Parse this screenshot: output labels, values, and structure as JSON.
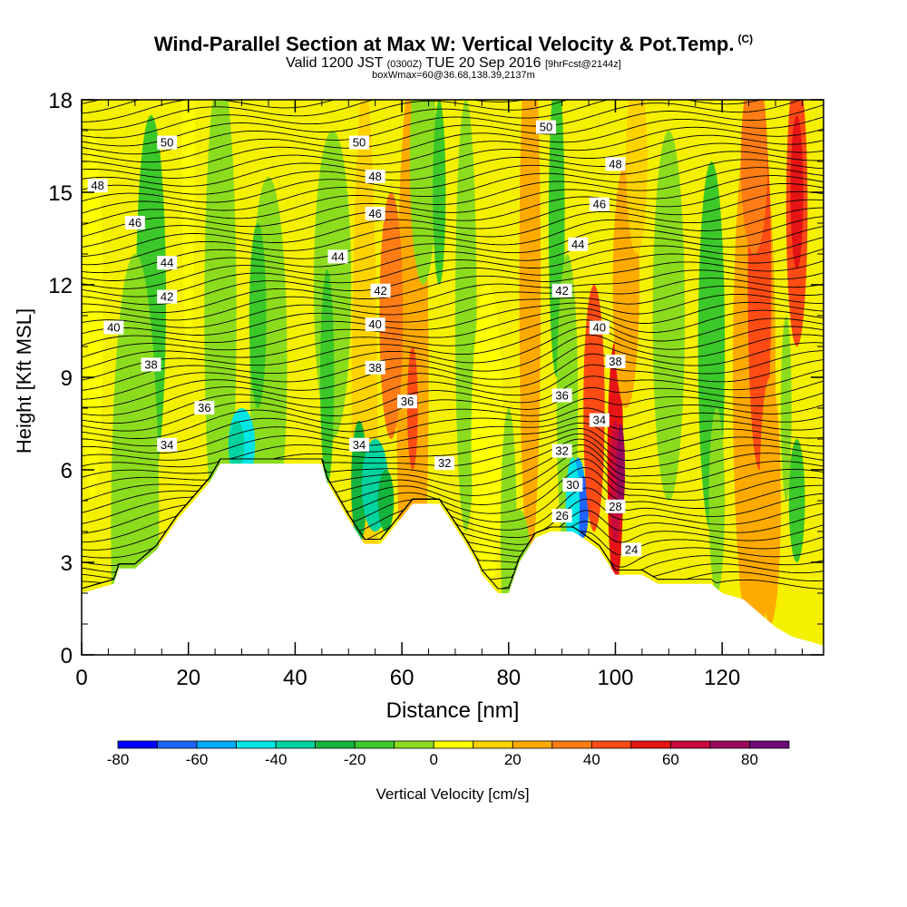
{
  "header": {
    "title": "Wind-Parallel Section at Max W: Vertical Velocity & Pot.Temp.",
    "copyright": "(C)",
    "valid_prefix": "Valid 1200 JST",
    "valid_z": "(0300Z)",
    "valid_date": "TUE 20 Sep 2016",
    "forecast": "[9hrFcst@2144z]",
    "box_info": "boxWmax=60@36.68,138.39,2137m"
  },
  "colors": {
    "scale": [
      "#0000ff",
      "#1e64ff",
      "#00aaff",
      "#00e6e6",
      "#00d3a0",
      "#14b43c",
      "#3cc828",
      "#8cdc1e",
      "#ffff00",
      "#ffd200",
      "#ffaa00",
      "#ff7d14",
      "#ff4b14",
      "#e61414",
      "#c80a3c",
      "#9b0a5a",
      "#6e0a78"
    ],
    "default_fill": "#f5f000",
    "terrain": "#ffffff"
  },
  "chart_data": {
    "type": "heatmap",
    "xlabel": "Distance [nm]",
    "ylabel": "Height [Kft MSL]",
    "xlim": [
      0,
      139
    ],
    "ylim": [
      0,
      18
    ],
    "xticks": [
      0,
      20,
      40,
      60,
      80,
      100,
      120
    ],
    "yticks": [
      0,
      3,
      6,
      9,
      12,
      15,
      18
    ],
    "colorbar": {
      "label": "Vertical Velocity [cm/s]",
      "range": [
        -80,
        90
      ],
      "step": 10,
      "tick_labels": [
        -80,
        -60,
        -40,
        -20,
        0,
        20,
        40,
        60,
        80
      ]
    },
    "terrain": [
      [
        0,
        2.0
      ],
      [
        6,
        2.3
      ],
      [
        7,
        2.8
      ],
      [
        10,
        2.8
      ],
      [
        14,
        3.4
      ],
      [
        16,
        3.9
      ],
      [
        18,
        4.4
      ],
      [
        21,
        5.0
      ],
      [
        24,
        5.6
      ],
      [
        26,
        6.2
      ],
      [
        45,
        6.2
      ],
      [
        46,
        5.6
      ],
      [
        48,
        5.0
      ],
      [
        50,
        4.4
      ],
      [
        53,
        3.6
      ],
      [
        56,
        3.6
      ],
      [
        62,
        4.9
      ],
      [
        67,
        4.9
      ],
      [
        69,
        4.4
      ],
      [
        72,
        3.6
      ],
      [
        74,
        3.0
      ],
      [
        75,
        2.6
      ],
      [
        78,
        2.0
      ],
      [
        80,
        2.0
      ],
      [
        82,
        3.0
      ],
      [
        85,
        3.8
      ],
      [
        88,
        4.0
      ],
      [
        92,
        4.0
      ],
      [
        93,
        3.9
      ],
      [
        97,
        3.4
      ],
      [
        100,
        2.6
      ],
      [
        105,
        2.6
      ],
      [
        108,
        2.3
      ],
      [
        118,
        2.3
      ],
      [
        120,
        2.0
      ],
      [
        124,
        1.8
      ],
      [
        126,
        1.5
      ],
      [
        128,
        1.2
      ],
      [
        130,
        0.9
      ],
      [
        133,
        0.6
      ],
      [
        139,
        0.3
      ]
    ],
    "contour_labels": [
      {
        "label": "48",
        "x": 3,
        "y": 15.2
      },
      {
        "label": "46",
        "x": 10,
        "y": 14.0
      },
      {
        "label": "44",
        "x": 16,
        "y": 12.7
      },
      {
        "label": "42",
        "x": 16,
        "y": 11.6
      },
      {
        "label": "40",
        "x": 6,
        "y": 10.6
      },
      {
        "label": "38",
        "x": 13,
        "y": 9.4
      },
      {
        "label": "36",
        "x": 23,
        "y": 8.0
      },
      {
        "label": "34",
        "x": 16,
        "y": 6.8
      },
      {
        "label": "50",
        "x": 16,
        "y": 16.6
      },
      {
        "label": "50",
        "x": 52,
        "y": 16.6
      },
      {
        "label": "48",
        "x": 55,
        "y": 15.5
      },
      {
        "label": "46",
        "x": 55,
        "y": 14.3
      },
      {
        "label": "44",
        "x": 48,
        "y": 12.9
      },
      {
        "label": "42",
        "x": 56,
        "y": 11.8
      },
      {
        "label": "40",
        "x": 55,
        "y": 10.7
      },
      {
        "label": "38",
        "x": 55,
        "y": 9.3
      },
      {
        "label": "36",
        "x": 61,
        "y": 8.2
      },
      {
        "label": "34",
        "x": 52,
        "y": 6.8
      },
      {
        "label": "32",
        "x": 68,
        "y": 6.2
      },
      {
        "label": "50",
        "x": 87,
        "y": 17.1
      },
      {
        "label": "48",
        "x": 100,
        "y": 15.9
      },
      {
        "label": "46",
        "x": 97,
        "y": 14.6
      },
      {
        "label": "44",
        "x": 93,
        "y": 13.3
      },
      {
        "label": "42",
        "x": 90,
        "y": 11.8
      },
      {
        "label": "40",
        "x": 97,
        "y": 10.6
      },
      {
        "label": "38",
        "x": 100,
        "y": 9.5
      },
      {
        "label": "36",
        "x": 90,
        "y": 8.4
      },
      {
        "label": "34",
        "x": 97,
        "y": 7.6
      },
      {
        "label": "32",
        "x": 90,
        "y": 6.6
      },
      {
        "label": "30",
        "x": 92,
        "y": 5.5
      },
      {
        "label": "28",
        "x": 100,
        "y": 4.8
      },
      {
        "label": "26",
        "x": 90,
        "y": 4.5
      },
      {
        "label": "24",
        "x": 103,
        "y": 3.4
      }
    ]
  }
}
